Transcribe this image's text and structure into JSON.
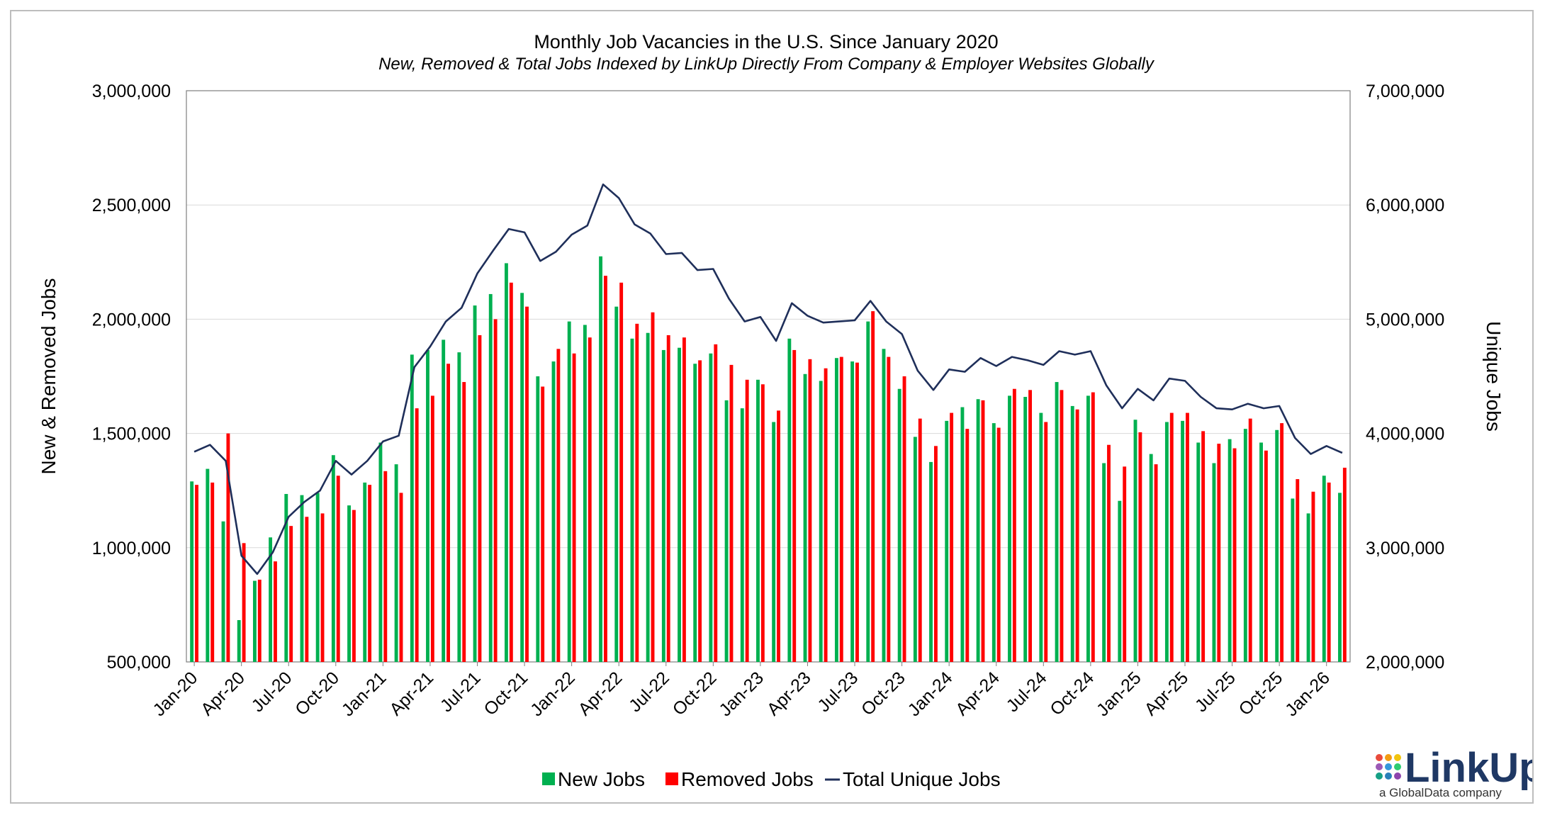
{
  "chart_data": {
    "type": "bar",
    "title": "Monthly Job Vacancies in the U.S. Since January 2020",
    "subtitle": "New, Removed & Total Jobs Indexed by LinkUp Directly From Company & Employer Websites Globally",
    "ylabel": "New & Removed Jobs",
    "y2label": "Unique Jobs",
    "ylim": [
      500000,
      3000000
    ],
    "y2lim": [
      2000000,
      7000000
    ],
    "yticks": [
      "500,000",
      "1,000,000",
      "1,500,000",
      "2,000,000",
      "2,500,000",
      "3,000,000"
    ],
    "y2ticks": [
      "2,000,000",
      "3,000,000",
      "4,000,000",
      "5,000,000",
      "6,000,000",
      "7,000,000"
    ],
    "xtick_labels": [
      "Jan-20",
      "Apr-20",
      "Jul-20",
      "Oct-20",
      "Jan-21",
      "Apr-21",
      "Jul-21",
      "Oct-21",
      "Jan-22",
      "Apr-22",
      "Jul-22",
      "Oct-22",
      "Jan-23",
      "Apr-23",
      "Jul-23",
      "Oct-23",
      "Jan-24",
      "Apr-24",
      "Jul-24",
      "Oct-24",
      "Jan-25",
      "Apr-25",
      "Jul-25",
      "Oct-25",
      "Jan-26"
    ],
    "grid": true,
    "legend_position": "bottom",
    "categories": [
      "Jan-20",
      "Feb-20",
      "Mar-20",
      "Apr-20",
      "May-20",
      "Jun-20",
      "Jul-20",
      "Aug-20",
      "Sep-20",
      "Oct-20",
      "Nov-20",
      "Dec-20",
      "Jan-21",
      "Feb-21",
      "Mar-21",
      "Apr-21",
      "May-21",
      "Jun-21",
      "Jul-21",
      "Aug-21",
      "Sep-21",
      "Oct-21",
      "Nov-21",
      "Dec-21",
      "Jan-22",
      "Feb-22",
      "Mar-22",
      "Apr-22",
      "May-22",
      "Jun-22",
      "Jul-22",
      "Aug-22",
      "Sep-22",
      "Oct-22",
      "Nov-22",
      "Dec-22",
      "Jan-23",
      "Feb-23",
      "Mar-23",
      "Apr-23",
      "May-23",
      "Jun-23",
      "Jul-23",
      "Aug-23",
      "Sep-23",
      "Oct-23",
      "Nov-23",
      "Dec-23",
      "Jan-24",
      "Feb-24",
      "Mar-24",
      "Apr-24",
      "May-24",
      "Jun-24",
      "Jul-24",
      "Aug-24",
      "Sep-24",
      "Oct-24",
      "Nov-24",
      "Dec-24",
      "Jan-25",
      "Feb-25",
      "Mar-25",
      "Apr-25",
      "May-25",
      "Jun-25",
      "Jul-25",
      "Aug-25",
      "Sep-25",
      "Oct-25",
      "Nov-25",
      "Dec-25",
      "Jan-26",
      "Feb-26"
    ],
    "series": [
      {
        "name": "New Jobs",
        "type": "bar",
        "axis": "left",
        "color": "#00b050",
        "values": [
          1290000,
          1345000,
          1115000,
          683000,
          855000,
          1045000,
          1235000,
          1230000,
          1240000,
          1405000,
          1185000,
          1285000,
          1460000,
          1365000,
          1845000,
          1865000,
          1910000,
          1855000,
          2060000,
          2110000,
          2245000,
          2115000,
          1750000,
          1815000,
          1990000,
          1975000,
          2275000,
          2055000,
          1915000,
          1940000,
          1865000,
          1875000,
          1805000,
          1850000,
          1645000,
          1610000,
          1735000,
          1550000,
          1915000,
          1760000,
          1730000,
          1830000,
          1815000,
          1990000,
          1870000,
          1695000,
          1485000,
          1375000,
          1555000,
          1615000,
          1650000,
          1545000,
          1665000,
          1660000,
          1590000,
          1725000,
          1620000,
          1665000,
          1370000,
          1205000,
          1560000,
          1410000,
          1550000,
          1555000,
          1460000,
          1370000,
          1475000,
          1520000,
          1460000,
          1515000,
          1215000,
          1150000,
          1315000,
          1240000
        ]
      },
      {
        "name": "Removed Jobs",
        "type": "bar",
        "axis": "left",
        "color": "#ff0000",
        "values": [
          1275000,
          1285000,
          1500000,
          1020000,
          860000,
          940000,
          1095000,
          1135000,
          1150000,
          1315000,
          1165000,
          1275000,
          1335000,
          1240000,
          1610000,
          1665000,
          1805000,
          1725000,
          1930000,
          2000000,
          2160000,
          2055000,
          1705000,
          1870000,
          1850000,
          1920000,
          2190000,
          2160000,
          1980000,
          2030000,
          1930000,
          1920000,
          1820000,
          1890000,
          1800000,
          1735000,
          1715000,
          1600000,
          1865000,
          1825000,
          1785000,
          1835000,
          1810000,
          2035000,
          1835000,
          1750000,
          1565000,
          1445000,
          1590000,
          1520000,
          1645000,
          1525000,
          1695000,
          1690000,
          1550000,
          1690000,
          1605000,
          1680000,
          1450000,
          1355000,
          1505000,
          1365000,
          1590000,
          1590000,
          1510000,
          1455000,
          1435000,
          1565000,
          1425000,
          1545000,
          1300000,
          1245000,
          1285000,
          1350000
        ]
      },
      {
        "name": "Total Unique Jobs",
        "type": "line",
        "axis": "right",
        "color": "#1f2f5a",
        "values": [
          3840000,
          3900000,
          3760000,
          2930000,
          2770000,
          2960000,
          3270000,
          3400000,
          3500000,
          3760000,
          3640000,
          3760000,
          3930000,
          3980000,
          4580000,
          4760000,
          4980000,
          5100000,
          5400000,
          5600000,
          5790000,
          5760000,
          5510000,
          5590000,
          5740000,
          5820000,
          6180000,
          6060000,
          5830000,
          5750000,
          5570000,
          5580000,
          5430000,
          5440000,
          5180000,
          4980000,
          5020000,
          4810000,
          5140000,
          5030000,
          4970000,
          4980000,
          4990000,
          5160000,
          4980000,
          4870000,
          4550000,
          4380000,
          4560000,
          4540000,
          4660000,
          4590000,
          4670000,
          4640000,
          4600000,
          4720000,
          4690000,
          4720000,
          4420000,
          4220000,
          4390000,
          4290000,
          4480000,
          4460000,
          4320000,
          4220000,
          4210000,
          4260000,
          4220000,
          4240000,
          3960000,
          3820000,
          3890000,
          3830000
        ]
      }
    ]
  },
  "legend": {
    "new_jobs": "New Jobs",
    "removed_jobs": "Removed Jobs",
    "total_unique_jobs": "Total Unique Jobs"
  },
  "logo": {
    "name": "LinkUp",
    "tagline": "a GlobalData company"
  },
  "colors": {
    "new": "#00b050",
    "removed": "#ff0000",
    "line": "#1f2f5a",
    "grid": "#d9d9d9",
    "axis": "#7f7f7f"
  }
}
